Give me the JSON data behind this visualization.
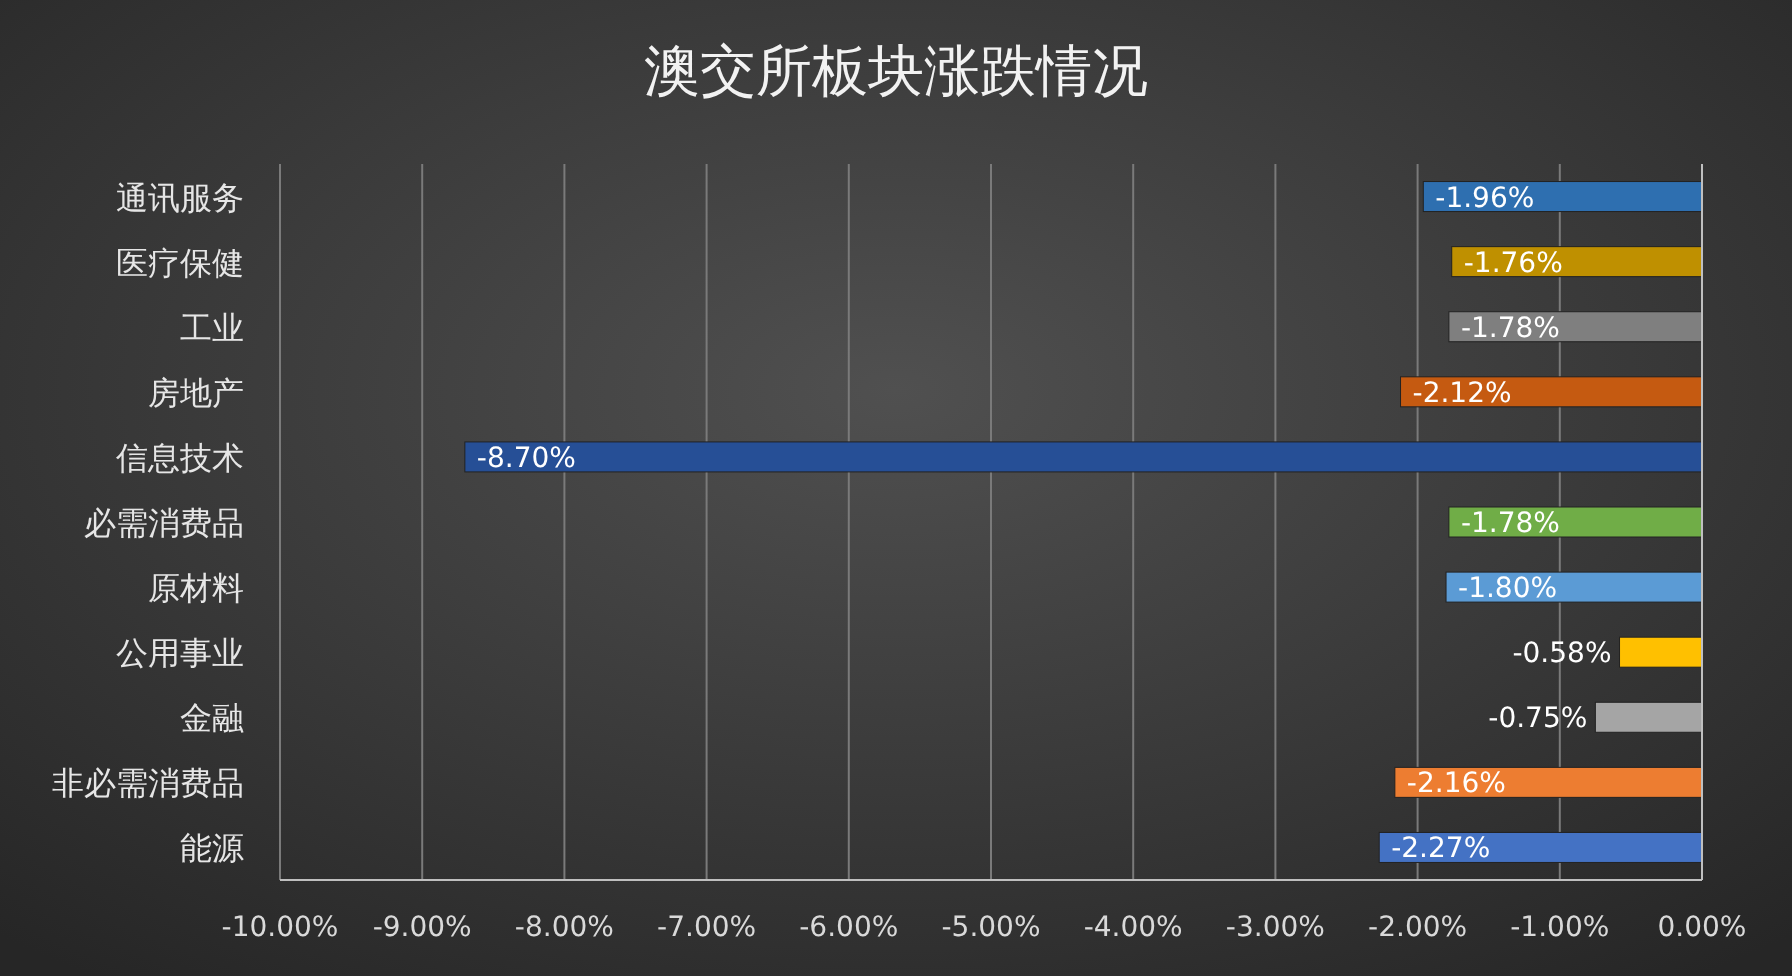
{
  "chart_data": {
    "type": "bar",
    "orientation": "horizontal",
    "title": "澳交所板块涨跌情况",
    "categories": [
      "通讯服务",
      "医疗保健",
      "工业",
      "房地产",
      "信息技术",
      "必需消费品",
      "原材料",
      "公用事业",
      "金融",
      "非必需消费品",
      "能源"
    ],
    "values": [
      -1.96,
      -1.76,
      -1.78,
      -2.12,
      -8.7,
      -1.78,
      -1.8,
      -0.58,
      -0.75,
      -2.16,
      -2.27
    ],
    "value_labels": [
      "-1.96%",
      "-1.76%",
      "-1.78%",
      "-2.12%",
      "-8.70%",
      "-1.78%",
      "-1.80%",
      "-0.58%",
      "-0.75%",
      "-2.16%",
      "-2.27%"
    ],
    "colors": [
      "#2e6fb0",
      "#bf9000",
      "#7f7f7f",
      "#c55a11",
      "#264f96",
      "#70ad47",
      "#5b9bd5",
      "#ffc000",
      "#a5a5a5",
      "#ed7d31",
      "#4472c4"
    ],
    "xlim": [
      -10,
      0
    ],
    "xticks": [
      {
        "value": -10,
        "label": "-10.00%"
      },
      {
        "value": -9,
        "label": "-9.00%"
      },
      {
        "value": -8,
        "label": "-8.00%"
      },
      {
        "value": -7,
        "label": "-7.00%"
      },
      {
        "value": -6,
        "label": "-6.00%"
      },
      {
        "value": -5,
        "label": "-5.00%"
      },
      {
        "value": -4,
        "label": "-4.00%"
      },
      {
        "value": -3,
        "label": "-3.00%"
      },
      {
        "value": -2,
        "label": "-2.00%"
      },
      {
        "value": -1,
        "label": "-1.00%"
      },
      {
        "value": 0,
        "label": "0.00%"
      }
    ],
    "grid": "x"
  }
}
